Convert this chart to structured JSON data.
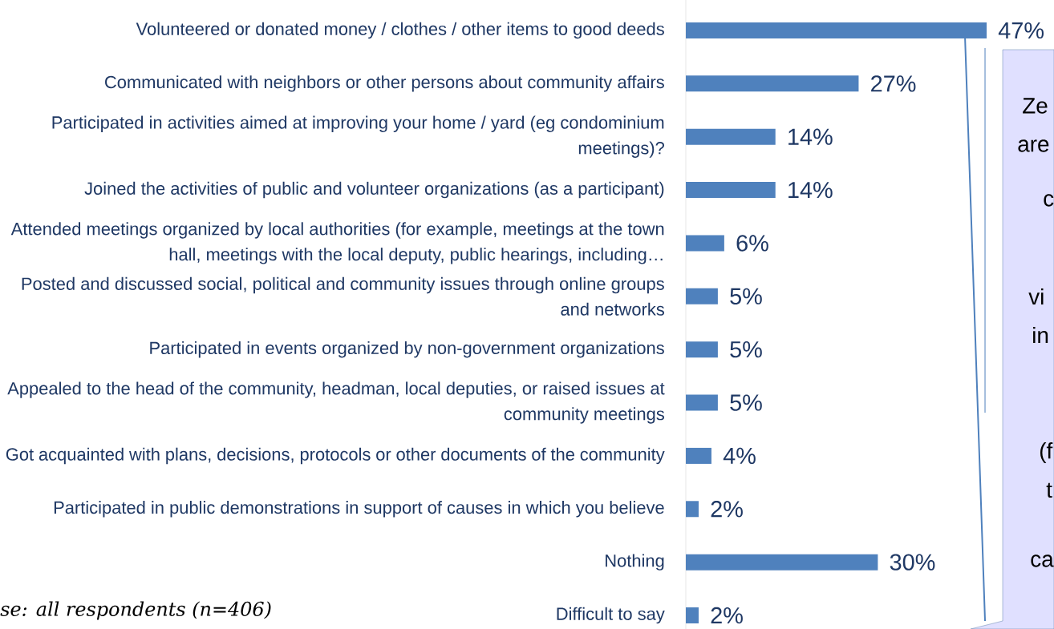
{
  "chart_data": {
    "type": "bar",
    "orientation": "horizontal",
    "color": "#4f81bd",
    "categories": [
      "Volunteered or donated money / clothes / other items to good deeds",
      "Communicated with neighbors or other persons about community affairs",
      "Participated in activities aimed at improving your home / yard (eg condominium meetings)?",
      "Joined the activities of public and volunteer organizations (as a participant)",
      "Attended meetings organized by local authorities (for example, meetings at the town hall, meetings with the local deputy, public hearings, including…",
      "Posted and discussed social, political and community issues through online groups and networks",
      "Participated in events organized by non-government organizations",
      "Appealed to the head of the community, headman, local deputies, or raised issues at community meetings",
      "Got acquainted with plans, decisions, protocols or other documents of the community",
      "Participated in public demonstrations in support of causes in which you believe",
      "Nothing",
      "Difficult to say"
    ],
    "values": [
      47,
      27,
      14,
      14,
      6,
      5,
      5,
      5,
      4,
      2,
      30,
      2
    ],
    "value_labels": [
      "47%",
      "27%",
      "14%",
      "14%",
      "6%",
      "5%",
      "5%",
      "5%",
      "4%",
      "2%",
      "30%",
      "2%"
    ],
    "annotations": [
      "se: all respondents (n=406)",
      "Ze",
      "are",
      "c",
      "vi",
      "in",
      "(f",
      "t",
      "ca"
    ]
  }
}
